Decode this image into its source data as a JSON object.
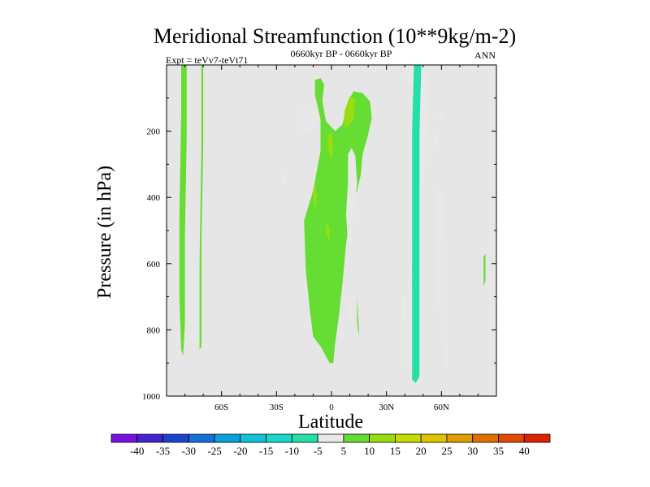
{
  "chart_data": {
    "type": "heatmap",
    "title": "Meridional Streamfunction (10**9kg/m-2)",
    "subtitle_left": "Expt = teVv7-teVt71",
    "subtitle_center": "0660kyr BP - 0660kyr BP",
    "subtitle_right": "ANN",
    "xlabel": "Latitude",
    "ylabel": "Pressure (in hPa)",
    "xlim": [
      -90,
      90
    ],
    "ylim": [
      1000,
      0
    ],
    "x_ticks": [
      {
        "value": -60,
        "label": "60S"
      },
      {
        "value": -30,
        "label": "30S"
      },
      {
        "value": 0,
        "label": "0"
      },
      {
        "value": 30,
        "label": "30N"
      },
      {
        "value": 60,
        "label": "60N"
      }
    ],
    "y_ticks": [
      {
        "value": 200,
        "label": "200"
      },
      {
        "value": 400,
        "label": "400"
      },
      {
        "value": 600,
        "label": "600"
      },
      {
        "value": 800,
        "label": "800"
      },
      {
        "value": 1000,
        "label": "1000"
      }
    ],
    "background_color": "#e6e6e6",
    "colorbar": {
      "labels": [
        "-40",
        "-35",
        "-30",
        "-25",
        "-20",
        "-15",
        "-10",
        "-5",
        "5",
        "10",
        "15",
        "20",
        "25",
        "30",
        "35",
        "40"
      ],
      "colors": [
        "#7a10e0",
        "#4422cc",
        "#1a44cc",
        "#1470d8",
        "#0aa0dc",
        "#10c4d8",
        "#1ad8c8",
        "#24e0a8",
        "#e8e8e8",
        "#66dd33",
        "#99dd11",
        "#c4dd00",
        "#e0c400",
        "#e09c00",
        "#e07000",
        "#e04a00",
        "#dd2200"
      ]
    },
    "regions": [
      {
        "level": 5,
        "points": [
          [
            -82,
            0
          ],
          [
            -79,
            0
          ],
          [
            -79,
            220
          ],
          [
            -80,
            520
          ],
          [
            -80,
            780
          ],
          [
            -81,
            880
          ],
          [
            -82,
            860
          ],
          [
            -83,
            700
          ],
          [
            -83,
            450
          ],
          [
            -82,
            150
          ]
        ]
      },
      {
        "level": 5,
        "points": [
          [
            -71,
            0
          ],
          [
            -70,
            0
          ],
          [
            -70,
            250
          ],
          [
            -71,
            550
          ],
          [
            -71,
            850
          ],
          [
            -72,
            860
          ],
          [
            -72,
            600
          ],
          [
            -71,
            250
          ]
        ]
      },
      {
        "level": -5,
        "points": [
          [
            -18,
            195
          ],
          [
            -19,
            155
          ],
          [
            -14,
            125
          ],
          [
            -8,
            120
          ],
          [
            -6,
            150
          ],
          [
            -8,
            185
          ],
          [
            -13,
            200
          ]
        ]
      },
      {
        "level": -5,
        "points": [
          [
            -27,
            345
          ],
          [
            -26,
            305
          ],
          [
            -25,
            340
          ],
          [
            -26,
            375
          ]
        ]
      },
      {
        "level": 5,
        "points": [
          [
            -9,
            45
          ],
          [
            -9,
            90
          ],
          [
            -6,
            165
          ],
          [
            -6,
            260
          ],
          [
            -10,
            380
          ],
          [
            -15,
            470
          ],
          [
            -14,
            620
          ],
          [
            -12,
            730
          ],
          [
            -10,
            820
          ],
          [
            -6,
            850
          ],
          [
            -1,
            900
          ],
          [
            1,
            900
          ],
          [
            2,
            840
          ],
          [
            4,
            760
          ],
          [
            6,
            660
          ],
          [
            8,
            540
          ],
          [
            10,
            460
          ],
          [
            12,
            400
          ],
          [
            14,
            380
          ],
          [
            16,
            330
          ],
          [
            17,
            270
          ],
          [
            20,
            210
          ],
          [
            22,
            160
          ],
          [
            21,
            110
          ],
          [
            17,
            85
          ],
          [
            12,
            80
          ],
          [
            9,
            110
          ],
          [
            6,
            180
          ],
          [
            2,
            200
          ],
          [
            -3,
            170
          ],
          [
            -5,
            110
          ],
          [
            -4,
            60
          ],
          [
            -6,
            40
          ]
        ]
      },
      {
        "level": 10,
        "points": [
          [
            7,
            140
          ],
          [
            10,
            95
          ],
          [
            13,
            105
          ],
          [
            12,
            165
          ],
          [
            9,
            185
          ],
          [
            7,
            190
          ]
        ]
      },
      {
        "level": 10,
        "points": [
          [
            -2,
            210
          ],
          [
            0,
            205
          ],
          [
            1,
            250
          ],
          [
            0,
            285
          ],
          [
            -2,
            250
          ]
        ]
      },
      {
        "level": 10,
        "points": [
          [
            -10,
            395
          ],
          [
            -9,
            355
          ],
          [
            -8,
            400
          ],
          [
            -9,
            440
          ]
        ]
      },
      {
        "level": 10,
        "points": [
          [
            -3,
            480
          ],
          [
            -1,
            490
          ],
          [
            -1,
            530
          ],
          [
            -3,
            510
          ]
        ]
      },
      {
        "level": -5,
        "points": [
          [
            9,
            270
          ],
          [
            11,
            250
          ],
          [
            13,
            275
          ],
          [
            14,
            360
          ],
          [
            12,
            440
          ],
          [
            11,
            530
          ],
          [
            9,
            550
          ],
          [
            8,
            450
          ],
          [
            9,
            350
          ]
        ]
      },
      {
        "level": -5,
        "points": [
          [
            10,
            700
          ],
          [
            11,
            725
          ],
          [
            11,
            790
          ],
          [
            10,
            760
          ]
        ]
      },
      {
        "level": 5,
        "points": [
          [
            14,
            700
          ],
          [
            15,
            800
          ],
          [
            15,
            820
          ],
          [
            14,
            780
          ]
        ]
      },
      {
        "level": -5,
        "points": [
          [
            39,
            0
          ],
          [
            52,
            0
          ],
          [
            51,
            300
          ],
          [
            49,
            470
          ],
          [
            46,
            580
          ],
          [
            43,
            650
          ],
          [
            40,
            700
          ],
          [
            38,
            720
          ],
          [
            38,
            850
          ],
          [
            37,
            930
          ],
          [
            38,
            920
          ],
          [
            40,
            750
          ],
          [
            43,
            580
          ],
          [
            46,
            460
          ],
          [
            48,
            300
          ],
          [
            49,
            150
          ]
        ]
      },
      {
        "level": -5,
        "points": [
          [
            56,
            195
          ],
          [
            59,
            190
          ],
          [
            58,
            240
          ],
          [
            56,
            250
          ]
        ]
      },
      {
        "level": -5,
        "points": [
          [
            55,
            150
          ],
          [
            59,
            140
          ],
          [
            62,
            155
          ],
          [
            60,
            165
          ],
          [
            57,
            160
          ]
        ]
      },
      {
        "level": -5,
        "points": [
          [
            57,
            370
          ],
          [
            60,
            380
          ],
          [
            62,
            450
          ],
          [
            63,
            560
          ],
          [
            63,
            700
          ],
          [
            64,
            900
          ],
          [
            62,
            930
          ],
          [
            58,
            720
          ],
          [
            57,
            550
          ]
        ]
      },
      {
        "level": -10,
        "points": [
          [
            45,
            0
          ],
          [
            49,
            0
          ],
          [
            48,
            200
          ],
          [
            48,
            400
          ],
          [
            48,
            600
          ],
          [
            48,
            800
          ],
          [
            48,
            940
          ],
          [
            46,
            960
          ],
          [
            44,
            950
          ],
          [
            44,
            800
          ],
          [
            44,
            600
          ],
          [
            44,
            400
          ],
          [
            44,
            200
          ]
        ]
      },
      {
        "level": 5,
        "points": [
          [
            83,
            580
          ],
          [
            84,
            570
          ],
          [
            84,
            650
          ],
          [
            83,
            670
          ]
        ]
      }
    ]
  }
}
